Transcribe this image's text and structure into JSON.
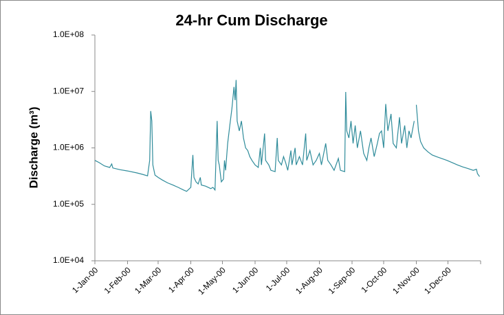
{
  "chart_data": {
    "type": "line",
    "title": "24-hr Cum Discharge",
    "y_label": "Discharge (m³)",
    "log_y": true,
    "ylim": [
      10000,
      100000000
    ],
    "yticks": [
      {
        "value": 10000,
        "label": "1.0E+04"
      },
      {
        "value": 100000,
        "label": "1.0E+05"
      },
      {
        "value": 1000000,
        "label": "1.0E+06"
      },
      {
        "value": 10000000,
        "label": "1.0E+07"
      },
      {
        "value": 100000000,
        "label": "1.0E+08"
      }
    ],
    "xlim": [
      "1-Jan-00",
      "31-Dec-00"
    ],
    "xticks": [
      "1-Jan-00",
      "1-Feb-00",
      "1-Mar-00",
      "1-Apr-00",
      "1-May-00",
      "1-Jun-00",
      "1-Jul-00",
      "1-Aug-00",
      "1-Sep-00",
      "1-Oct-00",
      "1-Nov-00",
      "1-Dec-00"
    ],
    "x": [
      "1-Jan-00",
      "5-Jan-00",
      "10-Jan-00",
      "15-Jan-00",
      "17-Jan-00",
      "18-Jan-00",
      "25-Jan-00",
      "1-Feb-00",
      "10-Feb-00",
      "15-Feb-00",
      "20-Feb-00",
      "22-Feb-00",
      "23-Feb-00",
      "24-Feb-00",
      "25-Feb-00",
      "27-Feb-00",
      "1-Mar-00",
      "5-Mar-00",
      "10-Mar-00",
      "15-Mar-00",
      "20-Mar-00",
      "25-Mar-00",
      "28-Mar-00",
      "1-Apr-00",
      "3-Apr-00",
      "4-Apr-00",
      "6-Apr-00",
      "8-Apr-00",
      "10-Apr-00",
      "11-Apr-00",
      "15-Apr-00",
      "20-Apr-00",
      "22-Apr-00",
      "24-Apr-00",
      "26-Apr-00",
      "27-Apr-00",
      "28-Apr-00",
      "30-Apr-00",
      "2-May-00",
      "3-May-00",
      "4-May-00",
      "6-May-00",
      "8-May-00",
      "10-May-00",
      "12-May-00",
      "13-May-00",
      "14-May-00",
      "15-May-00",
      "17-May-00",
      "19-May-00",
      "21-May-00",
      "23-May-00",
      "25-May-00",
      "27-May-00",
      "29-May-00",
      "1-Jun-00",
      "4-Jun-00",
      "6-Jun-00",
      "7-Jun-00",
      "10-Jun-00",
      "11-Jun-00",
      "14-Jun-00",
      "16-Jun-00",
      "20-Jun-00",
      "22-Jun-00",
      "23-Jun-00",
      "26-Jun-00",
      "28-Jun-00",
      "30-Jun-00",
      "2-Jul-00",
      "5-Jul-00",
      "6-Jul-00",
      "9-Jul-00",
      "10-Jul-00",
      "13-Jul-00",
      "16-Jul-00",
      "19-Jul-00",
      "20-Jul-00",
      "23-Jul-00",
      "26-Jul-00",
      "29-Jul-00",
      "1-Aug-00",
      "3-Aug-00",
      "7-Aug-00",
      "9-Aug-00",
      "12-Aug-00",
      "15-Aug-00",
      "19-Aug-00",
      "21-Aug-00",
      "25-Aug-00",
      "26-Aug-00",
      "27-Aug-00",
      "29-Aug-00",
      "31-Aug-00",
      "2-Sep-00",
      "4-Sep-00",
      "6-Sep-00",
      "9-Sep-00",
      "12-Sep-00",
      "15-Sep-00",
      "17-Sep-00",
      "19-Sep-00",
      "22-Sep-00",
      "25-Sep-00",
      "27-Sep-00",
      "29-Sep-00",
      "1-Oct-00",
      "3-Oct-00",
      "5-Oct-00",
      "8-Oct-00",
      "10-Oct-00",
      "13-Oct-00",
      "16-Oct-00",
      "18-Oct-00",
      "21-Oct-00",
      "23-Oct-00",
      "25-Oct-00",
      "27-Oct-00",
      "30-Oct-00",
      "31-Oct-00",
      "1-Nov-00",
      "3-Nov-00",
      "5-Nov-00",
      "8-Nov-00",
      "12-Nov-00",
      "16-Nov-00",
      "20-Nov-00",
      "25-Nov-00",
      "30-Nov-00",
      "5-Dec-00",
      "10-Dec-00",
      "15-Dec-00",
      "20-Dec-00",
      "25-Dec-00",
      "28-Dec-00",
      "29-Dec-00",
      "31-Dec-00"
    ],
    "series": [
      {
        "color": "#2e8b9a",
        "values": [
          600000,
          550000,
          480000,
          450000,
          520000,
          440000,
          410000,
          390000,
          360000,
          340000,
          320000,
          600000,
          4500000,
          3000000,
          500000,
          330000,
          300000,
          270000,
          240000,
          220000,
          200000,
          180000,
          170000,
          200000,
          750000,
          300000,
          250000,
          230000,
          300000,
          220000,
          210000,
          190000,
          200000,
          180000,
          3000000,
          600000,
          500000,
          250000,
          280000,
          600000,
          400000,
          1200000,
          2500000,
          5000000,
          12000000,
          7000000,
          16000000,
          3000000,
          2000000,
          3000000,
          1500000,
          1000000,
          900000,
          700000,
          600000,
          500000,
          450000,
          1000000,
          500000,
          1800000,
          600000,
          500000,
          400000,
          380000,
          1500000,
          600000,
          500000,
          700000,
          550000,
          400000,
          900000,
          500000,
          1000000,
          500000,
          700000,
          500000,
          1800000,
          600000,
          900000,
          500000,
          600000,
          800000,
          500000,
          1200000,
          600000,
          500000,
          400000,
          650000,
          400000,
          380000,
          9800000,
          2000000,
          1500000,
          3000000,
          1200000,
          2500000,
          1000000,
          2000000,
          800000,
          600000,
          1000000,
          1500000,
          700000,
          1200000,
          1800000,
          2000000,
          1000000,
          6000000,
          2000000,
          4000000,
          1200000,
          1000000,
          3500000,
          1200000,
          2500000,
          1000000,
          2000000,
          1500000,
          3000000,
          null,
          5800000,
          2000000,
          1300000,
          1000000,
          850000,
          750000,
          700000,
          650000,
          600000,
          550000,
          500000,
          460000,
          430000,
          400000,
          420000,
          350000,
          310000
        ]
      }
    ]
  }
}
